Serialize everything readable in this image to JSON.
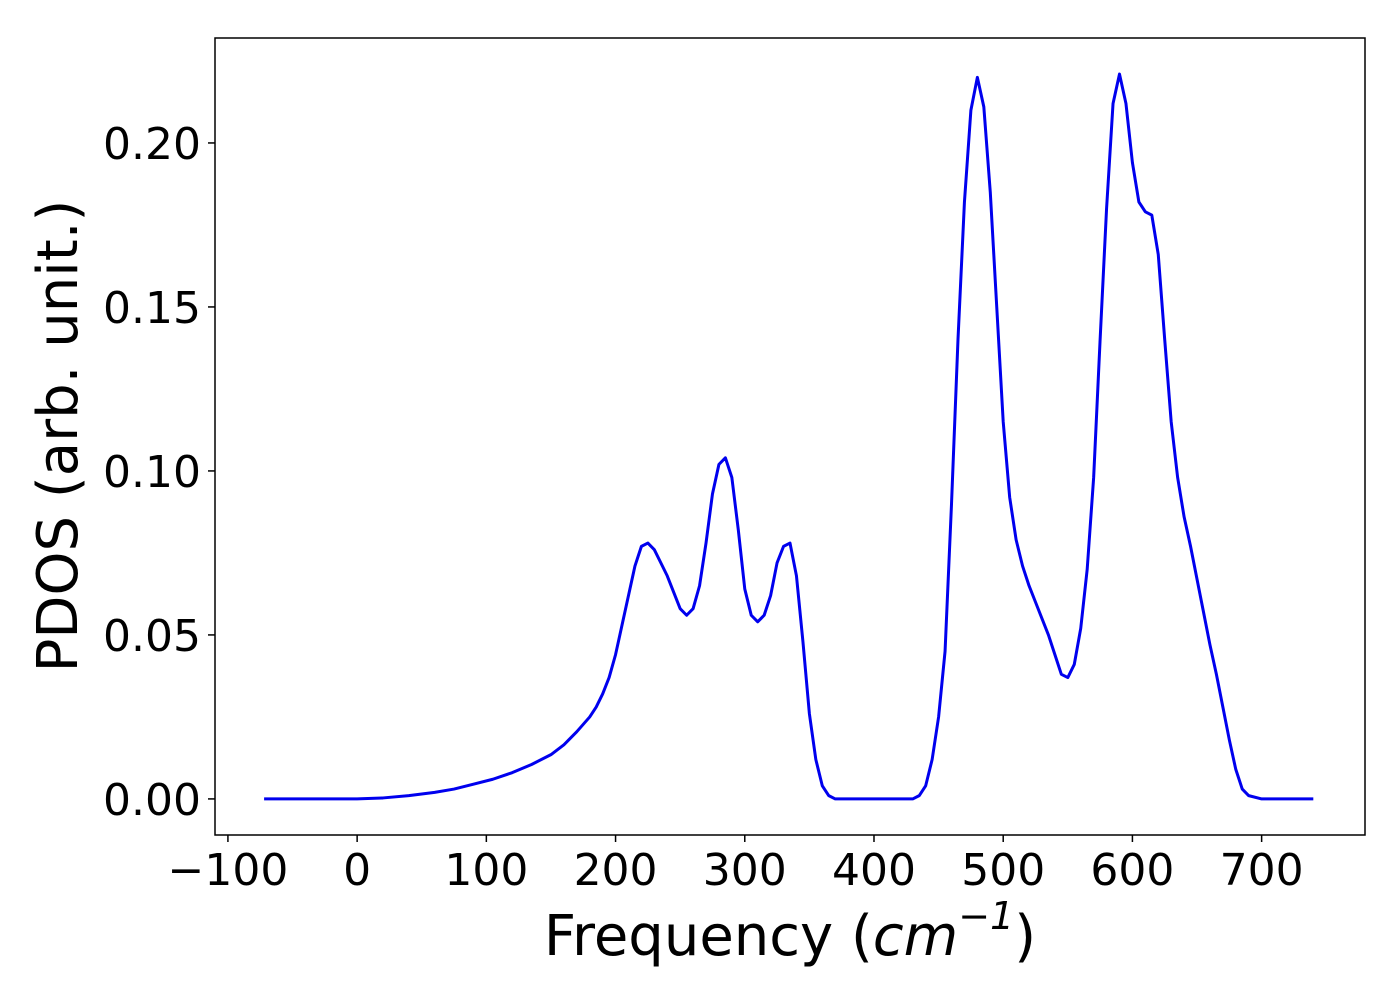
{
  "chart_data": {
    "type": "line",
    "title": "",
    "xlabel": "Frequency",
    "xlabel_unit_open": "(",
    "xlabel_unit_base": "cm",
    "xlabel_unit_exponent": "−1",
    "xlabel_unit_close": ")",
    "ylabel": "PDOS (arb. unit.)",
    "xlim": [
      -110,
      780
    ],
    "ylim": [
      -0.011,
      0.232
    ],
    "x_ticks": [
      -100,
      0,
      100,
      200,
      300,
      400,
      500,
      600,
      700
    ],
    "x_tick_labels": [
      "−100",
      "0",
      "100",
      "200",
      "300",
      "400",
      "500",
      "600",
      "700"
    ],
    "y_ticks": [
      0.0,
      0.05,
      0.1,
      0.15,
      0.2
    ],
    "y_tick_labels": [
      "0.00",
      "0.05",
      "0.10",
      "0.15",
      "0.20"
    ],
    "grid": false,
    "line_color": "#0000ee",
    "series": [
      {
        "x": [
          -72,
          -30,
          0,
          20,
          40,
          60,
          75,
          90,
          105,
          120,
          135,
          150,
          160,
          170,
          180,
          185,
          190,
          195,
          200,
          205,
          210,
          215,
          220,
          225,
          230,
          235,
          240,
          245,
          250,
          255,
          260,
          265,
          270,
          275,
          280,
          285,
          290,
          295,
          300,
          305,
          310,
          315,
          320,
          325,
          330,
          335,
          340,
          345,
          350,
          355,
          360,
          365,
          370,
          380,
          400,
          420,
          430,
          435,
          440,
          445,
          450,
          455,
          460,
          465,
          470,
          475,
          480,
          485,
          490,
          495,
          500,
          505,
          510,
          515,
          520,
          525,
          530,
          535,
          540,
          545,
          550,
          555,
          560,
          565,
          570,
          575,
          580,
          585,
          590,
          595,
          600,
          605,
          610,
          615,
          620,
          625,
          630,
          635,
          640,
          645,
          650,
          655,
          660,
          665,
          670,
          675,
          680,
          685,
          690,
          700,
          720,
          740
        ],
        "y": [
          0.0,
          0.0,
          0.0,
          0.0003,
          0.001,
          0.002,
          0.003,
          0.0045,
          0.006,
          0.008,
          0.0105,
          0.0135,
          0.0165,
          0.0205,
          0.025,
          0.028,
          0.032,
          0.037,
          0.044,
          0.053,
          0.062,
          0.071,
          0.077,
          0.078,
          0.076,
          0.072,
          0.068,
          0.063,
          0.058,
          0.056,
          0.058,
          0.065,
          0.078,
          0.093,
          0.102,
          0.104,
          0.098,
          0.082,
          0.064,
          0.056,
          0.054,
          0.056,
          0.062,
          0.072,
          0.077,
          0.078,
          0.068,
          0.048,
          0.026,
          0.012,
          0.004,
          0.001,
          0.0,
          0.0,
          0.0,
          0.0,
          0.0,
          0.001,
          0.004,
          0.012,
          0.025,
          0.045,
          0.09,
          0.14,
          0.182,
          0.21,
          0.22,
          0.211,
          0.185,
          0.15,
          0.115,
          0.092,
          0.079,
          0.071,
          0.065,
          0.06,
          0.055,
          0.05,
          0.044,
          0.038,
          0.037,
          0.041,
          0.052,
          0.07,
          0.098,
          0.14,
          0.18,
          0.212,
          0.221,
          0.212,
          0.194,
          0.182,
          0.179,
          0.178,
          0.166,
          0.14,
          0.115,
          0.098,
          0.086,
          0.077,
          0.067,
          0.057,
          0.047,
          0.038,
          0.028,
          0.018,
          0.009,
          0.003,
          0.001,
          0.0,
          0.0,
          0.0
        ]
      }
    ]
  }
}
